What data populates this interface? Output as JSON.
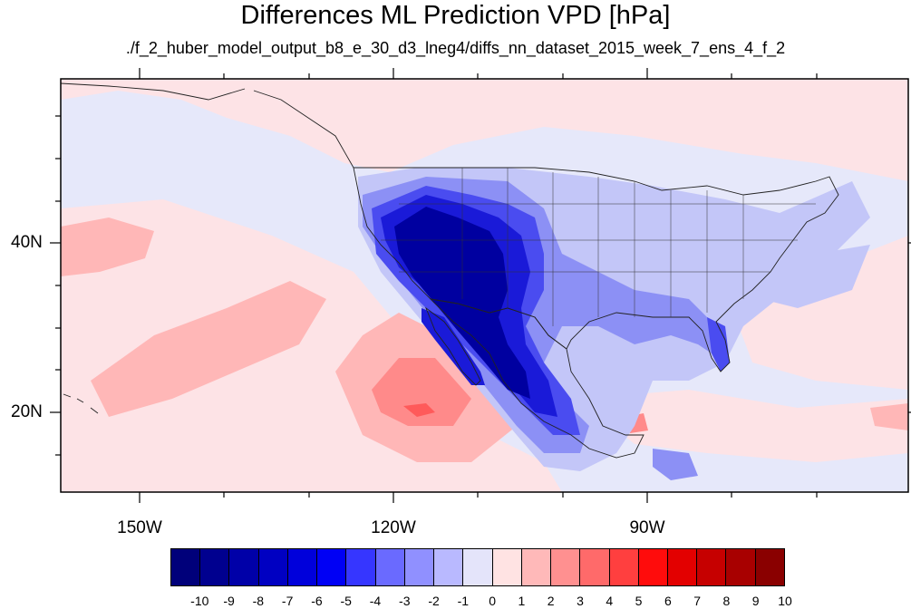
{
  "title": "Differences ML Prediction VPD [hPa]",
  "subtitle": "./f_2_huber_model_output_b8_e_30_d3_lneg4/diffs_nn_dataset_2015_week_7_ens_4_f_2",
  "lat_labels": [
    "40N",
    "20N"
  ],
  "lon_labels": [
    "150W",
    "120W",
    "90W"
  ],
  "colorbar": {
    "labels": [
      "-10",
      "-9",
      "-8",
      "-7",
      "-6",
      "-5",
      "-4",
      "-3",
      "-2",
      "-1",
      "0",
      "1",
      "2",
      "3",
      "4",
      "5",
      "6",
      "7",
      "8",
      "9",
      "10"
    ],
    "colors": [
      "#00007a",
      "#00008f",
      "#0000a8",
      "#0000c2",
      "#0000db",
      "#0000f5",
      "#3636ff",
      "#6a6aff",
      "#9090ff",
      "#b9b9ff",
      "#e4e4fa",
      "#ffe3e3",
      "#ffb9b9",
      "#ff9090",
      "#ff6a6a",
      "#ff3f3f",
      "#ff0c0c",
      "#e30000",
      "#c60000",
      "#a80000",
      "#8a0000"
    ]
  },
  "map_colors": {
    "ocean_base": "#e6e8fa",
    "light_red": "#fde3e6",
    "mid_red": "#ffb7b7",
    "strong_red": "#ff8a8a",
    "red": "#ff5a5a",
    "light_blue": "#c3c6f8",
    "mid_blue": "#8c90f5",
    "blue": "#4a4cf0",
    "dark_blue": "#1a1ad8",
    "darkest_blue": "#0000a0"
  }
}
